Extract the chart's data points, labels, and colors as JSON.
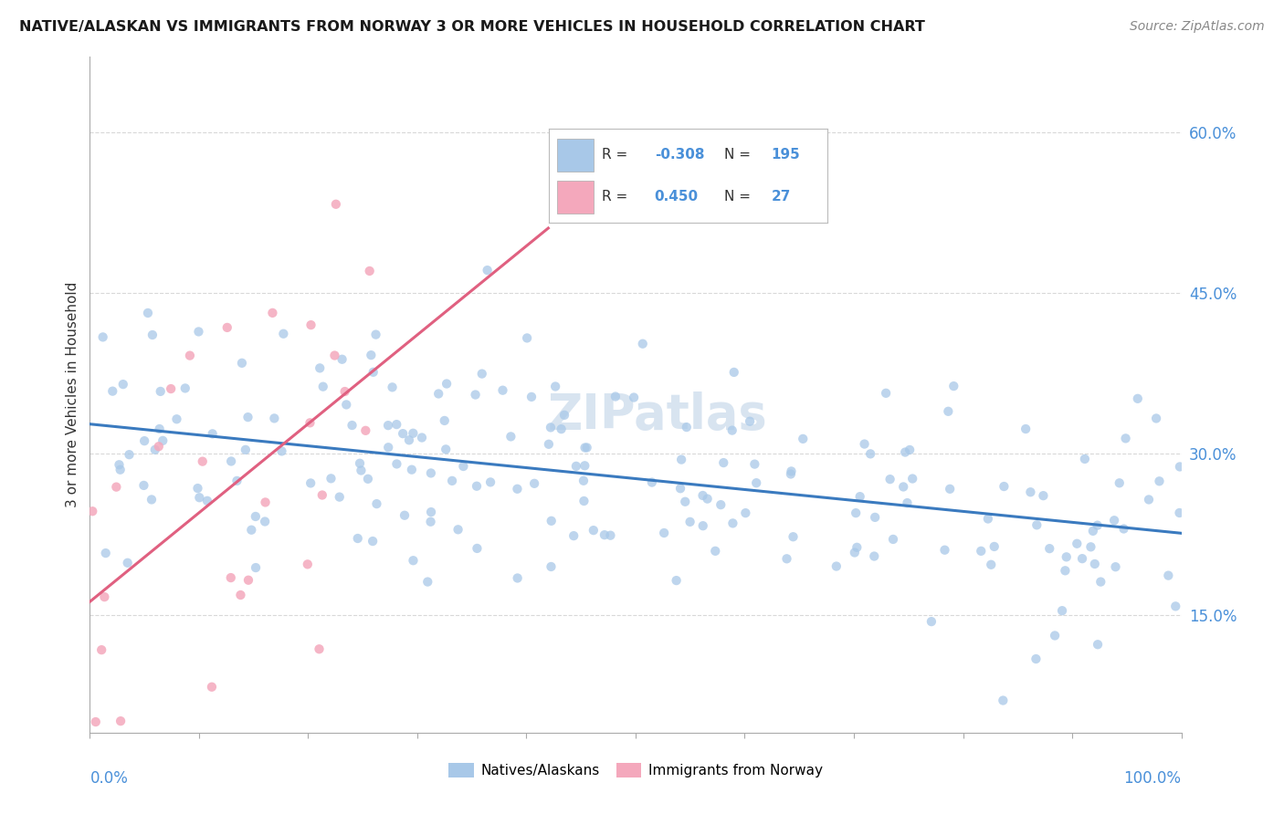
{
  "title": "NATIVE/ALASKAN VS IMMIGRANTS FROM NORWAY 3 OR MORE VEHICLES IN HOUSEHOLD CORRELATION CHART",
  "source": "Source: ZipAtlas.com",
  "ylabel": "3 or more Vehicles in Household",
  "right_yticks": [
    0.15,
    0.3,
    0.45,
    0.6
  ],
  "right_yticklabels": [
    "15.0%",
    "30.0%",
    "45.0%",
    "60.0%"
  ],
  "blue_R": -0.308,
  "blue_N": 195,
  "pink_R": 0.45,
  "pink_N": 27,
  "blue_color": "#a8c8e8",
  "pink_color": "#f4a8bc",
  "blue_line_color": "#3a7abf",
  "pink_line_color": "#e06080",
  "watermark_color": "#d8e4f0",
  "background_color": "#ffffff",
  "grid_color": "#c8c8c8",
  "axis_label_color": "#4a90d9",
  "text_color": "#333333",
  "legend_R_label_color": "#333333",
  "legend_val_color": "#4a90d9"
}
